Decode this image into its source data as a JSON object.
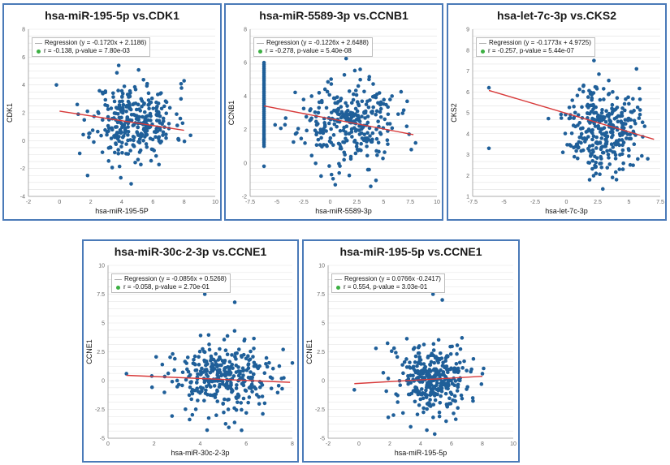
{
  "chart_data": [
    {
      "type": "scatter",
      "title": "hsa-miR-195-5p vs.CDK1",
      "xlabel": "hsa-miR-195-5P",
      "ylabel": "CDK1",
      "xlim": [
        -2,
        10
      ],
      "ylim": [
        -4,
        8
      ],
      "xticks": [
        -2,
        0,
        2,
        4,
        6,
        8,
        10
      ],
      "yticks": [
        -4,
        -2,
        0,
        2,
        4,
        6,
        8
      ],
      "regression_label": "Regression (y = -0.1720x + 2.1186)",
      "stats_label": "r = -0.138, p-value = 7.80e-03",
      "regression": {
        "slope": -0.172,
        "intercept": 2.1186,
        "x_range": [
          0,
          8
        ]
      },
      "cluster": {
        "n": 320,
        "cx": 4.8,
        "cy": 1.4,
        "sx": 1.3,
        "sy": 1.35,
        "seed": 11
      },
      "extra_points": [
        [
          -0.2,
          4.0
        ],
        [
          8.0,
          4.3
        ],
        [
          7.8,
          3.0
        ],
        [
          1.2,
          1.9
        ],
        [
          4.6,
          -3.1
        ],
        [
          3.8,
          5.4
        ],
        [
          1.8,
          -2.5
        ]
      ]
    },
    {
      "type": "scatter",
      "title": "hsa-miR-5589-3p vs.CCNB1",
      "xlabel": "hsa-miR-5589-3p",
      "ylabel": "CCNB1",
      "xlim": [
        -7.5,
        10
      ],
      "ylim": [
        -2,
        8
      ],
      "xticks": [
        -7.5,
        -5,
        -2.5,
        0,
        2.5,
        5,
        7.5,
        10
      ],
      "yticks": [
        -2,
        0,
        2,
        4,
        6,
        8
      ],
      "regression_label": "Regression (y = -0.1226x + 2.6488)",
      "stats_label": "r = -0.278, p-value = 5.40e-08",
      "regression": {
        "slope": -0.1226,
        "intercept": 2.6488,
        "x_range": [
          -6.2,
          7.8
        ]
      },
      "cluster": {
        "n": 300,
        "cx": 1.6,
        "cy": 2.4,
        "sx": 2.3,
        "sy": 1.25,
        "seed": 23
      },
      "column": {
        "x": -6.2,
        "n": 42,
        "ymin": 1.0,
        "ymax": 6.0
      },
      "extra_points": [
        [
          -6.2,
          -0.2
        ],
        [
          -6.2,
          1.4
        ],
        [
          7.6,
          0.8
        ],
        [
          8.0,
          1.2
        ],
        [
          3.8,
          -1.4
        ]
      ]
    },
    {
      "type": "scatter",
      "title": "hsa-let-7c-3p vs.CKS2",
      "xlabel": "hsa-let-7c-3p",
      "ylabel": "CKS2",
      "xlim": [
        -7.5,
        7.5
      ],
      "ylim": [
        1,
        9
      ],
      "xticks": [
        -7.5,
        -5,
        -2.5,
        0,
        2.5,
        5,
        7.5
      ],
      "yticks": [
        1,
        2,
        3,
        4,
        5,
        6,
        7,
        8,
        9
      ],
      "regression_label": "Regression (y = -0.1773x + 4.9725)",
      "stats_label": "r = -0.257, p-value = 5.44e-07",
      "regression": {
        "slope": -0.1773,
        "intercept": 4.9725,
        "x_range": [
          -6.2,
          7.0
        ]
      },
      "cluster": {
        "n": 320,
        "cx": 2.9,
        "cy": 4.3,
        "sx": 1.4,
        "sy": 1.05,
        "seed": 37
      },
      "extra_points": [
        [
          -6.2,
          6.2
        ],
        [
          -6.2,
          3.3
        ],
        [
          6.5,
          2.8
        ],
        [
          5.6,
          7.1
        ],
        [
          2.2,
          7.5
        ],
        [
          4.0,
          1.8
        ]
      ]
    },
    {
      "type": "scatter",
      "title": "hsa-miR-30c-2-3p vs.CCNE1",
      "xlabel": "hsa-miR-30c-2-3p",
      "ylabel": "CCNE1",
      "xlim": [
        0,
        8
      ],
      "ylim": [
        -5,
        10
      ],
      "xticks": [
        0,
        2,
        4,
        6,
        8
      ],
      "yticks": [
        -5,
        -2.5,
        0,
        2.5,
        5,
        7.5,
        10
      ],
      "regression_label": "Regression (y = -0.0856x + 0.5268)",
      "stats_label": "r = -0.058, p-value = 2.70e-01",
      "regression": {
        "slope": -0.0856,
        "intercept": 0.5268,
        "x_range": [
          0.8,
          7.9
        ]
      },
      "cluster": {
        "n": 330,
        "cx": 5.1,
        "cy": 0.2,
        "sx": 1.2,
        "sy": 1.5,
        "seed": 53
      },
      "extra_points": [
        [
          0.8,
          0.6
        ],
        [
          4.2,
          7.5
        ],
        [
          5.5,
          6.8
        ],
        [
          4.3,
          -4.3
        ],
        [
          7.6,
          2.7
        ],
        [
          1.9,
          0.4
        ]
      ]
    },
    {
      "type": "scatter",
      "title": "hsa-miR-195-5p vs.CCNE1",
      "xlabel": "hsa-miR-195-5p",
      "ylabel": "CCNE1",
      "xlim": [
        -2,
        10
      ],
      "ylim": [
        -5,
        10
      ],
      "xticks": [
        -2,
        0,
        2,
        4,
        6,
        8,
        10
      ],
      "yticks": [
        -5,
        -2.5,
        0,
        2.5,
        5,
        7.5,
        10
      ],
      "regression_label": "Regression (y = 0.0766x -0.2417)",
      "stats_label": "r = 0.554, p-value = 3.03e-01",
      "regression": {
        "slope": 0.0766,
        "intercept": -0.2417,
        "x_range": [
          -0.3,
          8.0
        ]
      },
      "cluster": {
        "n": 330,
        "cx": 4.8,
        "cy": 0.1,
        "sx": 1.2,
        "sy": 1.5,
        "seed": 71
      },
      "extra_points": [
        [
          -0.3,
          -0.8
        ],
        [
          4.8,
          7.5
        ],
        [
          5.4,
          7.0
        ],
        [
          4.4,
          -4.3
        ],
        [
          8.0,
          0.6
        ],
        [
          1.1,
          2.8
        ]
      ]
    }
  ]
}
